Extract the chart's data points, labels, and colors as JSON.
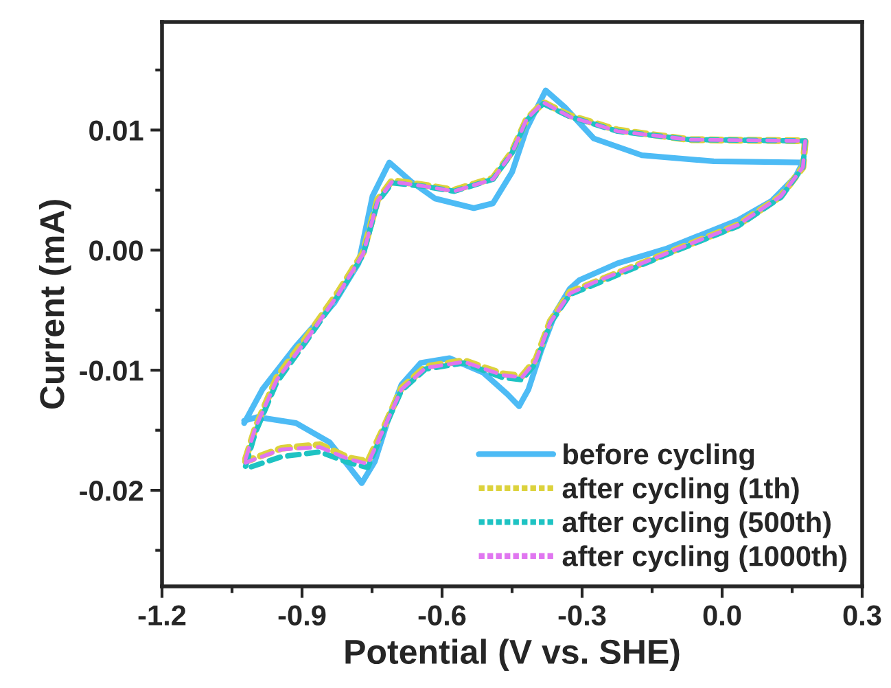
{
  "chart_data": {
    "type": "line",
    "xlabel": "Potential (V vs. SHE)",
    "ylabel": "Current (mA)",
    "xlim": [
      -1.2,
      0.3
    ],
    "ylim": [
      -0.028,
      0.019
    ],
    "xticks": [
      {
        "value": -1.2,
        "label": "-1.2"
      },
      {
        "value": -1.05,
        "label": null
      },
      {
        "value": -0.9,
        "label": "-0.9"
      },
      {
        "value": -0.75,
        "label": null
      },
      {
        "value": -0.6,
        "label": "-0.6"
      },
      {
        "value": -0.45,
        "label": null
      },
      {
        "value": -0.3,
        "label": "-0.3"
      },
      {
        "value": -0.15,
        "label": null
      },
      {
        "value": 0.0,
        "label": "0.0"
      },
      {
        "value": 0.15,
        "label": null
      },
      {
        "value": 0.3,
        "label": "0.3"
      }
    ],
    "yticks": [
      {
        "value": -0.025,
        "label": null
      },
      {
        "value": -0.02,
        "label": "-0.02"
      },
      {
        "value": -0.015,
        "label": null
      },
      {
        "value": -0.01,
        "label": "-0.01"
      },
      {
        "value": -0.005,
        "label": null
      },
      {
        "value": 0.0,
        "label": "0.00"
      },
      {
        "value": 0.005,
        "label": null
      },
      {
        "value": 0.01,
        "label": "0.01"
      },
      {
        "value": 0.015,
        "label": null
      }
    ],
    "grid": false,
    "legend": "bottom right",
    "marker": "none",
    "series": [
      {
        "name": "before cycling",
        "color": "#4dbbf5",
        "line_style": "solid",
        "x": [
          -1.024,
          -0.985,
          -0.913,
          -0.831,
          -0.779,
          -0.749,
          -0.713,
          -0.666,
          -0.615,
          -0.532,
          -0.491,
          -0.45,
          -0.419,
          -0.378,
          -0.337,
          -0.275,
          -0.172,
          -0.018,
          0.173,
          0.157,
          0.106,
          0.034,
          -0.121,
          -0.224,
          -0.306,
          -0.326,
          -0.357,
          -0.388,
          -0.415,
          -0.435,
          -0.46,
          -0.512,
          -0.584,
          -0.646,
          -0.687,
          -0.718,
          -0.744,
          -0.772,
          -0.8,
          -0.841,
          -0.913,
          -0.996,
          -1.024
        ],
        "values": [
          -0.0144,
          -0.0116,
          -0.008,
          -0.0044,
          -0.0011,
          0.0045,
          0.0073,
          0.0057,
          0.0043,
          0.0035,
          0.0039,
          0.0065,
          0.0101,
          0.0133,
          0.0119,
          0.0093,
          0.0079,
          0.0074,
          0.0073,
          0.0061,
          0.0041,
          0.0025,
          0.0001,
          -0.0011,
          -0.0025,
          -0.0032,
          -0.0052,
          -0.0084,
          -0.0116,
          -0.013,
          -0.012,
          -0.0102,
          -0.009,
          -0.0094,
          -0.0112,
          -0.0144,
          -0.0176,
          -0.0194,
          -0.018,
          -0.016,
          -0.0144,
          -0.0139,
          -0.0142
        ]
      },
      {
        "name": "after cycling (1th)",
        "color": "#dcd23c",
        "line_style": "dashed",
        "x": [
          -1.021,
          -1.0,
          -0.954,
          -0.893,
          -0.821,
          -0.769,
          -0.738,
          -0.707,
          -0.635,
          -0.574,
          -0.491,
          -0.45,
          -0.419,
          -0.383,
          -0.326,
          -0.224,
          -0.069,
          0.178,
          0.173,
          0.126,
          0.034,
          -0.121,
          -0.275,
          -0.326,
          -0.368,
          -0.399,
          -0.429,
          -0.471,
          -0.553,
          -0.635,
          -0.687,
          -0.724,
          -0.759,
          -0.8,
          -0.862,
          -0.944,
          -1.021
        ],
        "values": [
          -0.0174,
          -0.0148,
          -0.0106,
          -0.0074,
          -0.0034,
          -0.0002,
          0.0042,
          0.0058,
          0.0054,
          0.005,
          0.006,
          0.0082,
          0.0109,
          0.0123,
          0.0112,
          0.01,
          0.0092,
          0.0091,
          0.0069,
          0.0045,
          0.0021,
          -0.0003,
          -0.0027,
          -0.0035,
          -0.0059,
          -0.0091,
          -0.0105,
          -0.0103,
          -0.0092,
          -0.0097,
          -0.0115,
          -0.0147,
          -0.0176,
          -0.0173,
          -0.0162,
          -0.0165,
          -0.0176
        ]
      },
      {
        "name": "after cycling (500th)",
        "color": "#1ec3c3",
        "line_style": "dashed",
        "x": [
          -1.021,
          -1.0,
          -0.954,
          -0.893,
          -0.821,
          -0.769,
          -0.738,
          -0.707,
          -0.635,
          -0.574,
          -0.491,
          -0.45,
          -0.419,
          -0.383,
          -0.326,
          -0.224,
          -0.069,
          0.178,
          0.173,
          0.126,
          0.034,
          -0.121,
          -0.275,
          -0.326,
          -0.368,
          -0.399,
          -0.429,
          -0.471,
          -0.553,
          -0.635,
          -0.687,
          -0.724,
          -0.759,
          -0.8,
          -0.862,
          -0.944,
          -1.021
        ],
        "values": [
          -0.018,
          -0.0152,
          -0.011,
          -0.0077,
          -0.0037,
          -0.0004,
          0.004,
          0.0056,
          0.0053,
          0.0049,
          0.0059,
          0.0081,
          0.0108,
          0.0122,
          0.0111,
          0.0099,
          0.0092,
          0.0091,
          0.0069,
          0.0044,
          0.002,
          -0.0004,
          -0.0029,
          -0.0037,
          -0.0061,
          -0.0094,
          -0.0108,
          -0.0106,
          -0.0094,
          -0.0099,
          -0.0117,
          -0.0149,
          -0.0181,
          -0.0177,
          -0.0168,
          -0.0172,
          -0.0182
        ]
      },
      {
        "name": "after cycling (1000th)",
        "color": "#e076f0",
        "line_style": "dashed",
        "x": [
          -1.021,
          -1.0,
          -0.954,
          -0.893,
          -0.821,
          -0.769,
          -0.738,
          -0.707,
          -0.635,
          -0.574,
          -0.491,
          -0.45,
          -0.419,
          -0.383,
          -0.326,
          -0.224,
          -0.069,
          0.178,
          0.173,
          0.126,
          0.034,
          -0.121,
          -0.275,
          -0.326,
          -0.368,
          -0.399,
          -0.429,
          -0.471,
          -0.553,
          -0.635,
          -0.687,
          -0.724,
          -0.759,
          -0.8,
          -0.862,
          -0.944,
          -1.021
        ],
        "values": [
          -0.0174,
          -0.0148,
          -0.0108,
          -0.0076,
          -0.0036,
          -0.0003,
          0.0041,
          0.0057,
          0.0053,
          0.0049,
          0.0059,
          0.0081,
          0.0109,
          0.0123,
          0.0111,
          0.0099,
          0.0092,
          0.0091,
          0.0069,
          0.0045,
          0.0021,
          -0.0003,
          -0.0027,
          -0.0036,
          -0.006,
          -0.0092,
          -0.0106,
          -0.0104,
          -0.0093,
          -0.0098,
          -0.0116,
          -0.0148,
          -0.0178,
          -0.0174,
          -0.0164,
          -0.0166,
          -0.0177
        ]
      }
    ]
  }
}
